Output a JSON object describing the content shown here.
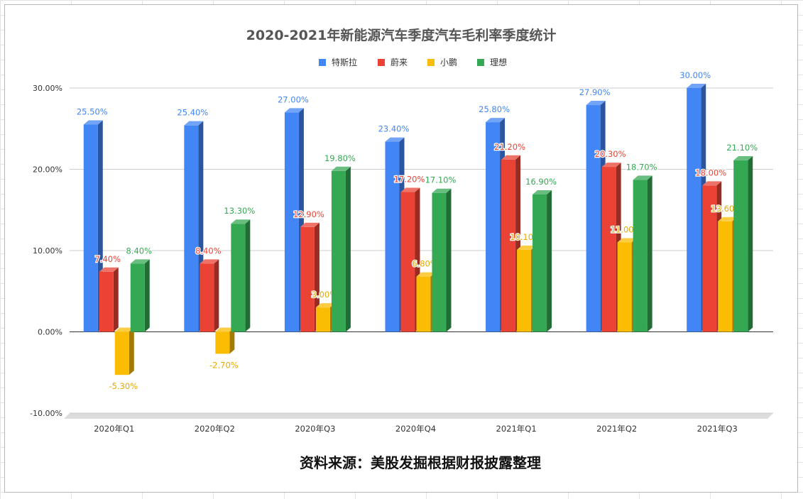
{
  "chart_data": {
    "type": "bar",
    "title": "2020-2021年新能源汽车季度汽车毛利率季度统计",
    "categories": [
      "2020年Q1",
      "2020年Q2",
      "2020年Q3",
      "2020年Q4",
      "2021年Q1",
      "2021年Q2",
      "2021年Q3"
    ],
    "series": [
      {
        "name": "特斯拉",
        "color": "#4285f4",
        "values": [
          25.5,
          25.4,
          27.0,
          23.4,
          25.8,
          27.9,
          30.0
        ],
        "labels": [
          "25.50%",
          "25.40%",
          "27.00%",
          "23.40%",
          "25.80%",
          "27.90%",
          "30.00%"
        ]
      },
      {
        "name": "蔚来",
        "color": "#ea4335",
        "values": [
          7.4,
          8.4,
          12.9,
          17.2,
          21.2,
          20.3,
          18.0
        ],
        "labels": [
          "7.40%",
          "8.40%",
          "12.90%",
          "17.20%",
          "21.20%",
          "20.30%",
          "18.00%"
        ]
      },
      {
        "name": "小鹏",
        "color": "#fbbc04",
        "values": [
          -5.3,
          -2.7,
          3.0,
          6.8,
          10.1,
          11.0,
          13.6
        ],
        "labels": [
          "-5.30%",
          "-2.70%",
          "3.00%",
          "6.80%",
          "10.10%",
          "11.00%",
          "13.60%"
        ]
      },
      {
        "name": "理想",
        "color": "#34a853",
        "values": [
          8.4,
          13.3,
          19.8,
          17.1,
          16.9,
          18.7,
          21.1
        ],
        "labels": [
          "8.40%",
          "13.30%",
          "19.80%",
          "17.10%",
          "16.90%",
          "18.70%",
          "21.10%"
        ]
      }
    ],
    "ylim": [
      -10,
      30
    ],
    "yticks": [
      30,
      20,
      10,
      0,
      -10
    ],
    "ytick_labels": [
      "30.00%",
      "20.00%",
      "10.00%",
      "0.00%",
      "-10.00%"
    ],
    "legend_position": "top",
    "grid": true,
    "style": "3d-bar"
  },
  "footer": {
    "source_note": "资料来源：美股发掘根据财报披露整理"
  }
}
